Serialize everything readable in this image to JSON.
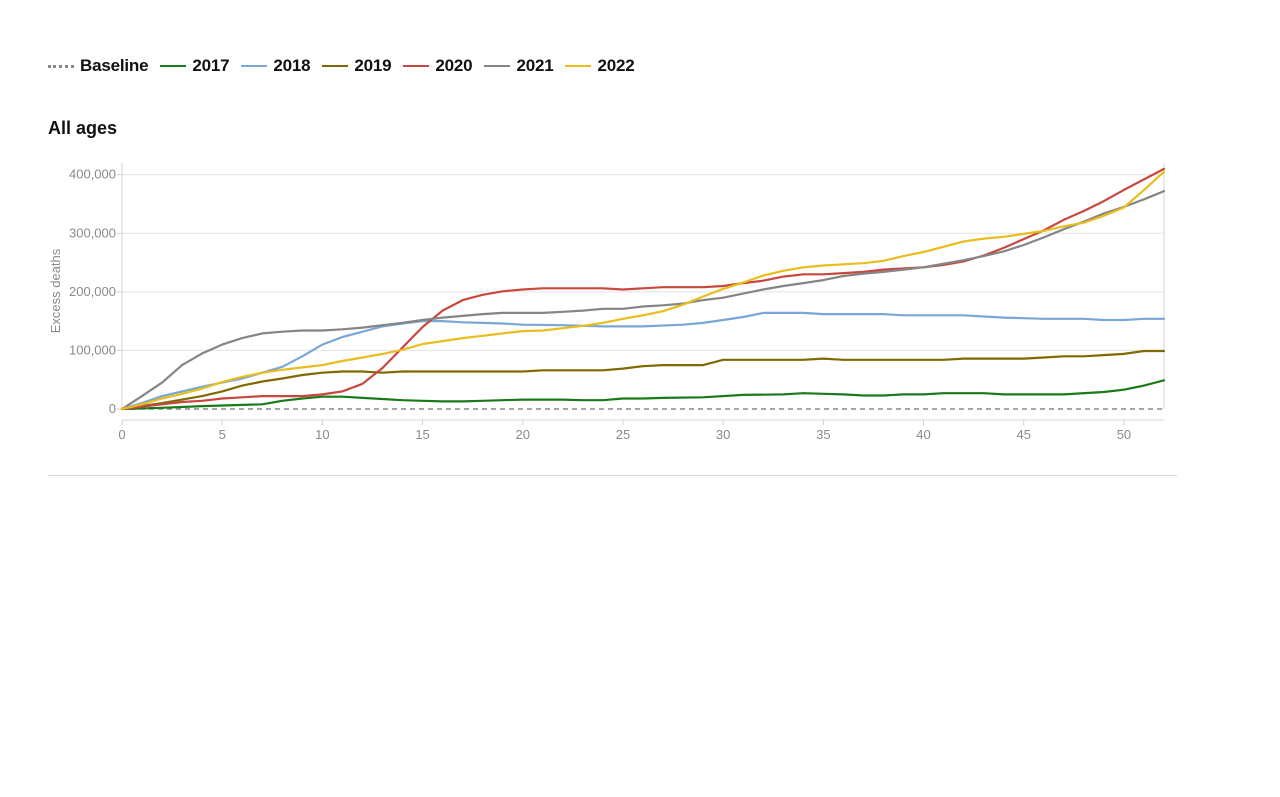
{
  "legend": [
    {
      "label": "Baseline",
      "color": "#888888",
      "style": "dotted"
    },
    {
      "label": "2017",
      "color": "#1a7a1a",
      "style": "solid"
    },
    {
      "label": "2018",
      "color": "#7aa6d8",
      "style": "solid"
    },
    {
      "label": "2019",
      "color": "#7f6a00",
      "style": "solid"
    },
    {
      "label": "2020",
      "color": "#c8473f",
      "style": "solid"
    },
    {
      "label": "2021",
      "color": "#858585",
      "style": "solid"
    },
    {
      "label": "2022",
      "color": "#e9bd1c",
      "style": "solid"
    }
  ],
  "chart_data": {
    "type": "line",
    "title": "All ages",
    "xlabel": "",
    "ylabel": "Excess deaths",
    "xlim": [
      0,
      52
    ],
    "ylim": [
      0,
      420000
    ],
    "xticks": [
      0,
      5,
      10,
      15,
      20,
      25,
      30,
      35,
      40,
      45,
      50
    ],
    "yticks": [
      0,
      100000,
      200000,
      300000,
      400000
    ],
    "ytick_labels": [
      "0",
      "100,000",
      "200,000",
      "300,000",
      "400,000"
    ],
    "grid": true,
    "legend_position": "top",
    "baseline": {
      "name": "Baseline",
      "y": 0,
      "color": "#888888",
      "dash": "5,4"
    },
    "series": [
      {
        "name": "2017",
        "color": "#1a7a1a",
        "points": [
          [
            0,
            0
          ],
          [
            2,
            2000
          ],
          [
            4,
            5000
          ],
          [
            7,
            8000
          ],
          [
            8,
            14000
          ],
          [
            9,
            18000
          ],
          [
            10,
            21000
          ],
          [
            11,
            21000
          ],
          [
            12,
            19000
          ],
          [
            13,
            17000
          ],
          [
            14,
            15000
          ],
          [
            15,
            14000
          ],
          [
            16,
            13000
          ],
          [
            17,
            13000
          ],
          [
            18,
            14000
          ],
          [
            19,
            15000
          ],
          [
            20,
            16000
          ],
          [
            22,
            16000
          ],
          [
            23,
            15000
          ],
          [
            24,
            15000
          ],
          [
            25,
            18000
          ],
          [
            26,
            18000
          ],
          [
            27,
            19000
          ],
          [
            29,
            20000
          ],
          [
            31,
            24000
          ],
          [
            33,
            25000
          ],
          [
            34,
            27000
          ],
          [
            35,
            26000
          ],
          [
            36,
            25000
          ],
          [
            37,
            23000
          ],
          [
            38,
            23000
          ],
          [
            39,
            25000
          ],
          [
            40,
            25000
          ],
          [
            41,
            27000
          ],
          [
            43,
            27000
          ],
          [
            44,
            25000
          ],
          [
            47,
            25000
          ],
          [
            49,
            29000
          ],
          [
            50,
            33000
          ],
          [
            51,
            40000
          ],
          [
            52,
            49000
          ]
        ]
      },
      {
        "name": "2018",
        "color": "#7aa6d8",
        "points": [
          [
            0,
            0
          ],
          [
            1,
            10000
          ],
          [
            2,
            22000
          ],
          [
            3,
            30000
          ],
          [
            4,
            38000
          ],
          [
            5,
            45000
          ],
          [
            6,
            52000
          ],
          [
            7,
            62000
          ],
          [
            8,
            72000
          ],
          [
            9,
            90000
          ],
          [
            10,
            110000
          ],
          [
            11,
            123000
          ],
          [
            12,
            132000
          ],
          [
            13,
            141000
          ],
          [
            14,
            146000
          ],
          [
            15,
            150000
          ],
          [
            16,
            150000
          ],
          [
            17,
            148000
          ],
          [
            18,
            147000
          ],
          [
            19,
            146000
          ],
          [
            20,
            144000
          ],
          [
            22,
            143000
          ],
          [
            24,
            141000
          ],
          [
            26,
            141000
          ],
          [
            28,
            144000
          ],
          [
            29,
            147000
          ],
          [
            30,
            152000
          ],
          [
            31,
            157000
          ],
          [
            32,
            164000
          ],
          [
            34,
            164000
          ],
          [
            35,
            162000
          ],
          [
            38,
            162000
          ],
          [
            39,
            160000
          ],
          [
            42,
            160000
          ],
          [
            43,
            158000
          ],
          [
            44,
            156000
          ],
          [
            45,
            155000
          ],
          [
            46,
            154000
          ],
          [
            48,
            154000
          ],
          [
            49,
            152000
          ],
          [
            50,
            152000
          ],
          [
            51,
            154000
          ],
          [
            52,
            154000
          ]
        ]
      },
      {
        "name": "2019",
        "color": "#7f6a00",
        "points": [
          [
            0,
            0
          ],
          [
            2,
            10000
          ],
          [
            3,
            16000
          ],
          [
            4,
            22000
          ],
          [
            5,
            30000
          ],
          [
            6,
            40000
          ],
          [
            7,
            47000
          ],
          [
            8,
            52000
          ],
          [
            9,
            58000
          ],
          [
            10,
            62000
          ],
          [
            11,
            64000
          ],
          [
            12,
            64000
          ],
          [
            13,
            62000
          ],
          [
            14,
            64000
          ],
          [
            20,
            64000
          ],
          [
            21,
            66000
          ],
          [
            24,
            66000
          ],
          [
            25,
            69000
          ],
          [
            26,
            73000
          ],
          [
            27,
            75000
          ],
          [
            29,
            75000
          ],
          [
            30,
            84000
          ],
          [
            34,
            84000
          ],
          [
            35,
            86000
          ],
          [
            36,
            84000
          ],
          [
            41,
            84000
          ],
          [
            42,
            86000
          ],
          [
            45,
            86000
          ],
          [
            46,
            88000
          ],
          [
            47,
            90000
          ],
          [
            48,
            90000
          ],
          [
            49,
            92000
          ],
          [
            50,
            94000
          ],
          [
            51,
            99000
          ],
          [
            52,
            99000
          ]
        ]
      },
      {
        "name": "2020",
        "color": "#c8473f",
        "points": [
          [
            0,
            0
          ],
          [
            2,
            8000
          ],
          [
            3,
            12000
          ],
          [
            4,
            14000
          ],
          [
            5,
            18000
          ],
          [
            6,
            20000
          ],
          [
            7,
            22000
          ],
          [
            9,
            22000
          ],
          [
            10,
            25000
          ],
          [
            11,
            30000
          ],
          [
            12,
            43000
          ],
          [
            13,
            70000
          ],
          [
            14,
            105000
          ],
          [
            15,
            140000
          ],
          [
            16,
            168000
          ],
          [
            17,
            186000
          ],
          [
            18,
            195000
          ],
          [
            19,
            201000
          ],
          [
            20,
            204000
          ],
          [
            21,
            206000
          ],
          [
            24,
            206000
          ],
          [
            25,
            204000
          ],
          [
            26,
            206000
          ],
          [
            27,
            208000
          ],
          [
            29,
            208000
          ],
          [
            30,
            210000
          ],
          [
            31,
            215000
          ],
          [
            32,
            219000
          ],
          [
            33,
            226000
          ],
          [
            34,
            230000
          ],
          [
            35,
            230000
          ],
          [
            36,
            232000
          ],
          [
            37,
            234000
          ],
          [
            38,
            238000
          ],
          [
            40,
            242000
          ],
          [
            41,
            246000
          ],
          [
            42,
            252000
          ],
          [
            43,
            262000
          ],
          [
            44,
            275000
          ],
          [
            45,
            290000
          ],
          [
            46,
            305000
          ],
          [
            47,
            323000
          ],
          [
            48,
            338000
          ],
          [
            49,
            355000
          ],
          [
            50,
            374000
          ],
          [
            51,
            392000
          ],
          [
            52,
            410000
          ]
        ]
      },
      {
        "name": "2021",
        "color": "#858585",
        "points": [
          [
            0,
            0
          ],
          [
            1,
            22000
          ],
          [
            2,
            45000
          ],
          [
            3,
            75000
          ],
          [
            4,
            95000
          ],
          [
            5,
            110000
          ],
          [
            6,
            121000
          ],
          [
            7,
            129000
          ],
          [
            8,
            132000
          ],
          [
            9,
            134000
          ],
          [
            10,
            134000
          ],
          [
            11,
            136000
          ],
          [
            12,
            139000
          ],
          [
            13,
            143000
          ],
          [
            14,
            147000
          ],
          [
            15,
            152000
          ],
          [
            16,
            156000
          ],
          [
            17,
            159000
          ],
          [
            18,
            162000
          ],
          [
            19,
            164000
          ],
          [
            21,
            164000
          ],
          [
            22,
            166000
          ],
          [
            23,
            168000
          ],
          [
            24,
            171000
          ],
          [
            25,
            171000
          ],
          [
            26,
            175000
          ],
          [
            27,
            177000
          ],
          [
            28,
            180000
          ],
          [
            29,
            186000
          ],
          [
            30,
            190000
          ],
          [
            31,
            197000
          ],
          [
            32,
            204000
          ],
          [
            33,
            210000
          ],
          [
            34,
            215000
          ],
          [
            35,
            220000
          ],
          [
            36,
            227000
          ],
          [
            37,
            231000
          ],
          [
            38,
            234000
          ],
          [
            39,
            238000
          ],
          [
            40,
            242000
          ],
          [
            41,
            248000
          ],
          [
            42,
            254000
          ],
          [
            43,
            261000
          ],
          [
            44,
            269000
          ],
          [
            45,
            280000
          ],
          [
            46,
            293000
          ],
          [
            47,
            307000
          ],
          [
            48,
            320000
          ],
          [
            49,
            334000
          ],
          [
            50,
            345000
          ],
          [
            51,
            358000
          ],
          [
            52,
            372000
          ]
        ]
      },
      {
        "name": "2022",
        "color": "#e9bd1c",
        "points": [
          [
            0,
            0
          ],
          [
            1,
            8000
          ],
          [
            2,
            18000
          ],
          [
            3,
            26000
          ],
          [
            4,
            35000
          ],
          [
            5,
            46000
          ],
          [
            6,
            55000
          ],
          [
            7,
            62000
          ],
          [
            8,
            67000
          ],
          [
            9,
            71000
          ],
          [
            10,
            75000
          ],
          [
            11,
            82000
          ],
          [
            12,
            88000
          ],
          [
            13,
            94000
          ],
          [
            14,
            101000
          ],
          [
            15,
            111000
          ],
          [
            16,
            116000
          ],
          [
            17,
            121000
          ],
          [
            18,
            125000
          ],
          [
            19,
            129000
          ],
          [
            20,
            133000
          ],
          [
            21,
            134000
          ],
          [
            22,
            138000
          ],
          [
            23,
            142000
          ],
          [
            24,
            147000
          ],
          [
            25,
            154000
          ],
          [
            26,
            160000
          ],
          [
            27,
            167000
          ],
          [
            28,
            178000
          ],
          [
            29,
            192000
          ],
          [
            30,
            205000
          ],
          [
            31,
            216000
          ],
          [
            32,
            228000
          ],
          [
            33,
            236000
          ],
          [
            34,
            242000
          ],
          [
            35,
            245000
          ],
          [
            36,
            247000
          ],
          [
            37,
            249000
          ],
          [
            38,
            253000
          ],
          [
            39,
            261000
          ],
          [
            40,
            268000
          ],
          [
            41,
            277000
          ],
          [
            42,
            286000
          ],
          [
            43,
            291000
          ],
          [
            44,
            294000
          ],
          [
            45,
            299000
          ],
          [
            46,
            304000
          ],
          [
            47,
            312000
          ],
          [
            48,
            318000
          ],
          [
            49,
            330000
          ],
          [
            50,
            344000
          ],
          [
            51,
            374000
          ],
          [
            52,
            405000
          ]
        ]
      }
    ]
  }
}
